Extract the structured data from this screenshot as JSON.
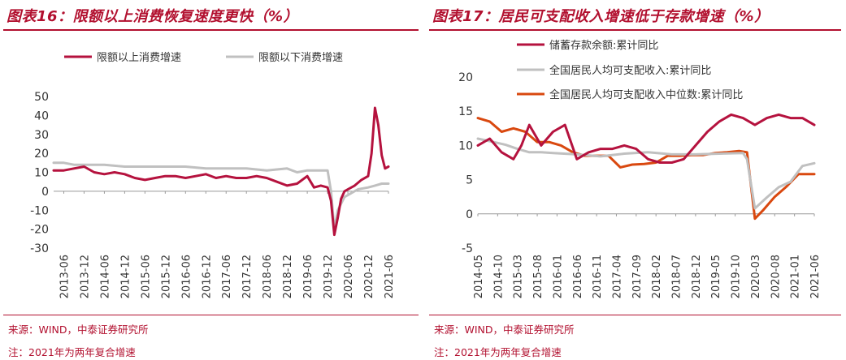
{
  "left": {
    "title": "图表16：限额以上消费恢复速度更快（%）",
    "source": "来源：WIND，中泰证券研究所",
    "note": "注：2021年为两年复合增速",
    "chart_data": {
      "type": "line",
      "colors": {
        "series1": "#b5123e",
        "series2": "#c0c0c0"
      },
      "legend_position": "top",
      "ylim": [
        -30,
        50
      ],
      "yticks": [
        50,
        40,
        30,
        20,
        10,
        0,
        -10,
        -20,
        -30
      ],
      "x_tick_labels": [
        "2013-06",
        "2013-12",
        "2014-06",
        "2014-12",
        "2015-06",
        "2015-12",
        "2016-06",
        "2016-12",
        "2017-06",
        "2017-12",
        "2018-06",
        "2018-12",
        "2019-06",
        "2019-12",
        "2020-06",
        "2020-12",
        "2021-06"
      ],
      "x_range_months": [
        "2013-03",
        "2021-06"
      ],
      "series": [
        {
          "name": "限额以上消费增速",
          "points": [
            [
              "2013-03",
              11
            ],
            [
              "2013-06",
              11
            ],
            [
              "2013-09",
              12
            ],
            [
              "2013-12",
              13
            ],
            [
              "2014-03",
              10
            ],
            [
              "2014-06",
              9
            ],
            [
              "2014-09",
              10
            ],
            [
              "2014-12",
              9
            ],
            [
              "2015-03",
              7
            ],
            [
              "2015-06",
              6
            ],
            [
              "2015-09",
              7
            ],
            [
              "2015-12",
              8
            ],
            [
              "2016-03",
              8
            ],
            [
              "2016-06",
              7
            ],
            [
              "2016-09",
              8
            ],
            [
              "2016-12",
              9
            ],
            [
              "2017-03",
              7
            ],
            [
              "2017-06",
              8
            ],
            [
              "2017-09",
              7
            ],
            [
              "2017-12",
              7
            ],
            [
              "2018-03",
              8
            ],
            [
              "2018-06",
              7
            ],
            [
              "2018-09",
              5
            ],
            [
              "2018-12",
              3
            ],
            [
              "2019-03",
              4
            ],
            [
              "2019-06",
              8
            ],
            [
              "2019-08",
              2
            ],
            [
              "2019-10",
              3
            ],
            [
              "2019-12",
              2
            ],
            [
              "2020-01",
              -5
            ],
            [
              "2020-02",
              -23
            ],
            [
              "2020-03",
              -14
            ],
            [
              "2020-04",
              -4
            ],
            [
              "2020-05",
              0
            ],
            [
              "2020-06",
              1
            ],
            [
              "2020-08",
              3
            ],
            [
              "2020-10",
              6
            ],
            [
              "2020-12",
              8
            ],
            [
              "2021-01",
              20
            ],
            [
              "2021-02",
              44
            ],
            [
              "2021-03",
              35
            ],
            [
              "2021-04",
              19
            ],
            [
              "2021-05",
              12
            ],
            [
              "2021-06",
              13
            ]
          ]
        },
        {
          "name": "限额以下消费增速",
          "points": [
            [
              "2013-03",
              15
            ],
            [
              "2013-06",
              15
            ],
            [
              "2013-09",
              14
            ],
            [
              "2013-12",
              14
            ],
            [
              "2014-06",
              14
            ],
            [
              "2014-12",
              13
            ],
            [
              "2015-06",
              13
            ],
            [
              "2015-12",
              13
            ],
            [
              "2016-06",
              13
            ],
            [
              "2016-12",
              12
            ],
            [
              "2017-06",
              12
            ],
            [
              "2017-12",
              12
            ],
            [
              "2018-06",
              11
            ],
            [
              "2018-12",
              12
            ],
            [
              "2019-03",
              10
            ],
            [
              "2019-06",
              11
            ],
            [
              "2019-09",
              11
            ],
            [
              "2019-12",
              11
            ],
            [
              "2020-01",
              0
            ],
            [
              "2020-02",
              -20
            ],
            [
              "2020-03",
              -10
            ],
            [
              "2020-05",
              -3
            ],
            [
              "2020-06",
              -2
            ],
            [
              "2020-09",
              1
            ],
            [
              "2020-12",
              2
            ],
            [
              "2021-02",
              3
            ],
            [
              "2021-04",
              4
            ],
            [
              "2021-06",
              4
            ]
          ]
        }
      ]
    }
  },
  "right": {
    "title": "图表17：居民可支配收入增速低于存款增速（%）",
    "source": "来源：WIND，中泰证券研究所",
    "note": "注：2021年为两年复合增速",
    "chart_data": {
      "type": "line",
      "colors": {
        "series1": "#b5123e",
        "series2": "#c0c0c0",
        "series3": "#d9480f"
      },
      "legend_position": "top-center",
      "ylim": [
        -5,
        20
      ],
      "yticks": [
        20,
        15,
        10,
        5,
        0,
        -5
      ],
      "x_tick_labels": [
        "2014-05",
        "2014-10",
        "2015-03",
        "2015-08",
        "2016-01",
        "2016-06",
        "2016-11",
        "2017-04",
        "2017-09",
        "2018-02",
        "2018-07",
        "2018-12",
        "2019-05",
        "2019-10",
        "2020-03",
        "2020-08",
        "2021-01",
        "2021-06"
      ],
      "x_range_months": [
        "2014-05",
        "2021-06"
      ],
      "series": [
        {
          "name": "储蓄存款余额:累计同比",
          "points": [
            [
              "2014-05",
              10
            ],
            [
              "2014-08",
              11
            ],
            [
              "2014-11",
              9
            ],
            [
              "2015-02",
              8
            ],
            [
              "2015-04",
              10
            ],
            [
              "2015-06",
              13
            ],
            [
              "2015-09",
              10
            ],
            [
              "2015-12",
              12
            ],
            [
              "2016-03",
              13
            ],
            [
              "2016-06",
              8
            ],
            [
              "2016-09",
              9
            ],
            [
              "2016-12",
              9.5
            ],
            [
              "2017-03",
              9.5
            ],
            [
              "2017-06",
              10
            ],
            [
              "2017-09",
              9.5
            ],
            [
              "2017-12",
              8
            ],
            [
              "2018-03",
              7.5
            ],
            [
              "2018-06",
              7.5
            ],
            [
              "2018-09",
              8
            ],
            [
              "2018-12",
              10
            ],
            [
              "2019-03",
              12
            ],
            [
              "2019-06",
              13.5
            ],
            [
              "2019-09",
              14.5
            ],
            [
              "2019-12",
              14
            ],
            [
              "2020-03",
              13
            ],
            [
              "2020-06",
              14
            ],
            [
              "2020-09",
              14.5
            ],
            [
              "2020-12",
              14
            ],
            [
              "2021-03",
              14
            ],
            [
              "2021-06",
              13
            ]
          ]
        },
        {
          "name": "全国居民人均可支配收入:累计同比",
          "points": [
            [
              "2014-05",
              11
            ],
            [
              "2014-09",
              10.5
            ],
            [
              "2014-12",
              10.1
            ],
            [
              "2015-03",
              9.5
            ],
            [
              "2015-06",
              9
            ],
            [
              "2015-09",
              9
            ],
            [
              "2015-12",
              8.9
            ],
            [
              "2016-06",
              8.7
            ],
            [
              "2016-12",
              8.4
            ],
            [
              "2017-06",
              8.8
            ],
            [
              "2017-12",
              9
            ],
            [
              "2018-06",
              8.7
            ],
            [
              "2018-12",
              8.7
            ],
            [
              "2019-06",
              8.8
            ],
            [
              "2019-12",
              8.9
            ],
            [
              "2020-01",
              8
            ],
            [
              "2020-03",
              0.8
            ],
            [
              "2020-06",
              2.4
            ],
            [
              "2020-09",
              3.9
            ],
            [
              "2020-12",
              4.7
            ],
            [
              "2021-03",
              7
            ],
            [
              "2021-06",
              7.4
            ]
          ]
        },
        {
          "name": "全国居民人均可支配收入中位数:累计同比",
          "points": [
            [
              "2014-05",
              14
            ],
            [
              "2014-08",
              13.5
            ],
            [
              "2014-11",
              12
            ],
            [
              "2015-02",
              12.5
            ],
            [
              "2015-05",
              12
            ],
            [
              "2015-08",
              10.5
            ],
            [
              "2015-11",
              10.5
            ],
            [
              "2016-02",
              10
            ],
            [
              "2016-05",
              9
            ],
            [
              "2016-08",
              8.5
            ],
            [
              "2016-11",
              8.5
            ],
            [
              "2017-02",
              8.5
            ],
            [
              "2017-05",
              6.8
            ],
            [
              "2017-08",
              7.2
            ],
            [
              "2017-11",
              7.3
            ],
            [
              "2018-02",
              7.5
            ],
            [
              "2018-05",
              8.5
            ],
            [
              "2018-08",
              8.5
            ],
            [
              "2018-11",
              8.6
            ],
            [
              "2019-02",
              8.6
            ],
            [
              "2019-05",
              8.9
            ],
            [
              "2019-08",
              9
            ],
            [
              "2019-11",
              9.2
            ],
            [
              "2020-01",
              9
            ],
            [
              "2020-03",
              -0.7
            ],
            [
              "2020-05",
              0.5
            ],
            [
              "2020-08",
              2.5
            ],
            [
              "2020-11",
              4
            ],
            [
              "2021-02",
              5.8
            ],
            [
              "2021-06",
              5.8
            ]
          ]
        }
      ]
    }
  }
}
